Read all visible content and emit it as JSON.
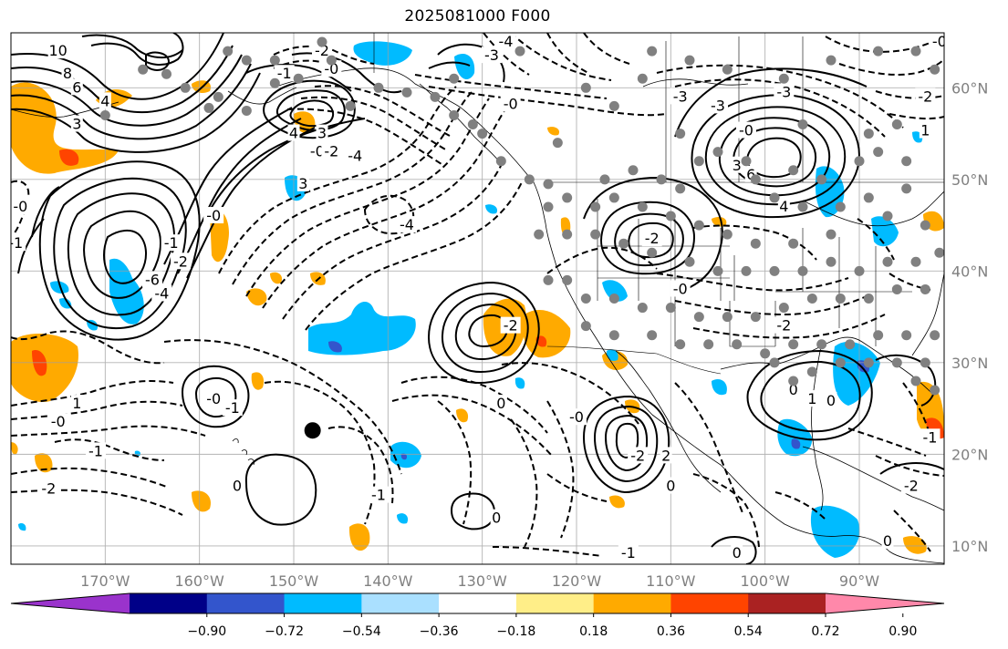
{
  "title": "2025081000 F000",
  "map": {
    "lon_min": -180,
    "lon_max": -81,
    "lat_min": 8,
    "lat_max": 66,
    "gridlines": true,
    "lon_ticks": [
      {
        "value": -170,
        "label": "170°W"
      },
      {
        "value": -160,
        "label": "160°W"
      },
      {
        "value": -150,
        "label": "150°W"
      },
      {
        "value": -140,
        "label": "140°W"
      },
      {
        "value": -130,
        "label": "130°W"
      },
      {
        "value": -120,
        "label": "120°W"
      },
      {
        "value": -110,
        "label": "110°W"
      },
      {
        "value": -100,
        "label": "100°W"
      },
      {
        "value": -90,
        "label": "90°W"
      }
    ],
    "lat_ticks": [
      {
        "value": 60,
        "label": "60°N"
      },
      {
        "value": 50,
        "label": "50°N"
      },
      {
        "value": 40,
        "label": "40°N"
      },
      {
        "value": 30,
        "label": "30°N"
      },
      {
        "value": 20,
        "label": "20°N"
      },
      {
        "value": 10,
        "label": "10°N"
      }
    ],
    "tick_label_color": "#808080",
    "contour_labels": [
      {
        "text": "10",
        "lon": -175,
        "lat": 64
      },
      {
        "text": "8",
        "lon": -174,
        "lat": 61.5
      },
      {
        "text": "6",
        "lon": -173,
        "lat": 60
      },
      {
        "text": "4",
        "lon": -170,
        "lat": 58.5
      },
      {
        "text": "3",
        "lon": -173,
        "lat": 56
      },
      {
        "text": "4",
        "lon": -150,
        "lat": 55
      },
      {
        "text": "3",
        "lon": -147,
        "lat": 55
      },
      {
        "text": "3",
        "lon": -149,
        "lat": 49.5
      },
      {
        "text": "-2",
        "lon": -147,
        "lat": 64
      },
      {
        "text": "-1",
        "lon": -151,
        "lat": 61.5
      },
      {
        "text": "-0",
        "lon": -146,
        "lat": 62
      },
      {
        "text": "-3",
        "lon": -129,
        "lat": 63.5
      },
      {
        "text": "-4",
        "lon": -127.5,
        "lat": 65
      },
      {
        "text": "-0",
        "lon": -127,
        "lat": 58.2
      },
      {
        "text": "-0",
        "lon": -147.5,
        "lat": 53
      },
      {
        "text": "-2",
        "lon": -146,
        "lat": 53
      },
      {
        "text": "-4",
        "lon": -143.5,
        "lat": 52.5
      },
      {
        "text": "-4",
        "lon": -138,
        "lat": 45
      },
      {
        "text": "-0",
        "lon": -179,
        "lat": 47
      },
      {
        "text": "-1",
        "lon": -179.5,
        "lat": 43
      },
      {
        "text": "-0",
        "lon": -158.5,
        "lat": 46
      },
      {
        "text": "-2",
        "lon": -162,
        "lat": 41
      },
      {
        "text": "-6",
        "lon": -165,
        "lat": 39
      },
      {
        "text": "-4",
        "lon": -164,
        "lat": 37.5
      },
      {
        "text": "-1",
        "lon": -163,
        "lat": 43
      },
      {
        "text": "-2",
        "lon": -127,
        "lat": 34
      },
      {
        "text": "0",
        "lon": -128,
        "lat": 25.5
      },
      {
        "text": "-0",
        "lon": -158.5,
        "lat": 26
      },
      {
        "text": "-1",
        "lon": -156.5,
        "lat": 25
      },
      {
        "text": "1",
        "lon": -173,
        "lat": 25.5
      },
      {
        "text": "-0",
        "lon": -175,
        "lat": 23.5
      },
      {
        "text": "-1",
        "lon": -171,
        "lat": 20.3
      },
      {
        "text": "-2",
        "lon": -176,
        "lat": 16.2
      },
      {
        "text": "0",
        "lon": -156,
        "lat": 16.5
      },
      {
        "text": "-1",
        "lon": -141,
        "lat": 15.5
      },
      {
        "text": "0",
        "lon": -128.5,
        "lat": 13
      },
      {
        "text": "-0",
        "lon": -120,
        "lat": 24
      },
      {
        "text": "-2",
        "lon": -113.5,
        "lat": 19.8
      },
      {
        "text": "2",
        "lon": -110.5,
        "lat": 19.8
      },
      {
        "text": "0",
        "lon": -110,
        "lat": 16.5
      },
      {
        "text": "-1",
        "lon": -114.5,
        "lat": 9.2
      },
      {
        "text": "0",
        "lon": -103,
        "lat": 9.2
      },
      {
        "text": "-0",
        "lon": -109,
        "lat": 38
      },
      {
        "text": "-2",
        "lon": -112,
        "lat": 43.5
      },
      {
        "text": "-2",
        "lon": -98,
        "lat": 34
      },
      {
        "text": "-3",
        "lon": -109,
        "lat": 59
      },
      {
        "text": "-3",
        "lon": -105,
        "lat": 58
      },
      {
        "text": "-3",
        "lon": -98,
        "lat": 59.5
      },
      {
        "text": "-0",
        "lon": -102,
        "lat": 55.3
      },
      {
        "text": "3",
        "lon": -103,
        "lat": 51.5
      },
      {
        "text": "6",
        "lon": -101.5,
        "lat": 50.5
      },
      {
        "text": "4",
        "lon": -98,
        "lat": 47
      },
      {
        "text": "-0",
        "lon": -81.5,
        "lat": 65
      },
      {
        "text": "-2",
        "lon": -83,
        "lat": 59
      },
      {
        "text": "1",
        "lon": -83,
        "lat": 55.3
      },
      {
        "text": "0",
        "lon": -97,
        "lat": 27
      },
      {
        "text": "1",
        "lon": -95,
        "lat": 26
      },
      {
        "text": "0",
        "lon": -93,
        "lat": 25.8
      },
      {
        "text": "-1",
        "lon": -82.5,
        "lat": 21.8
      },
      {
        "text": "-2",
        "lon": -84.5,
        "lat": 16.5
      },
      {
        "text": "0",
        "lon": -87,
        "lat": 10.5
      }
    ],
    "stations": [
      [
        -163.5,
        61.5
      ],
      [
        -161.5,
        60
      ],
      [
        -158,
        59
      ],
      [
        -155,
        57.5
      ],
      [
        -159,
        57.8
      ],
      [
        -152,
        60.5
      ],
      [
        -149.5,
        61
      ],
      [
        -147,
        65
      ],
      [
        -146,
        63
      ],
      [
        -152,
        63
      ],
      [
        -155,
        63
      ],
      [
        -157,
        64
      ],
      [
        -144,
        58
      ],
      [
        -141,
        60
      ],
      [
        -133,
        61
      ],
      [
        -126,
        64
      ],
      [
        -130,
        55
      ],
      [
        -122,
        54
      ],
      [
        -119,
        60
      ],
      [
        -116,
        58
      ],
      [
        -113,
        61
      ],
      [
        -112,
        64
      ],
      [
        -108,
        63
      ],
      [
        -104,
        62
      ],
      [
        -98,
        61
      ],
      [
        -93,
        63
      ],
      [
        -88,
        64
      ],
      [
        -84,
        64
      ],
      [
        -82,
        62
      ],
      [
        -109,
        55
      ],
      [
        -107,
        52
      ],
      [
        -105,
        53
      ],
      [
        -102,
        52
      ],
      [
        -101,
        50
      ],
      [
        -97,
        51
      ],
      [
        -94,
        50
      ],
      [
        -90,
        52
      ],
      [
        -88,
        53
      ],
      [
        -85,
        52
      ],
      [
        -96,
        56
      ],
      [
        -89,
        55
      ],
      [
        -86,
        56
      ],
      [
        -85,
        49
      ],
      [
        -99,
        48
      ],
      [
        -96,
        47
      ],
      [
        -92,
        47
      ],
      [
        -89,
        48
      ],
      [
        -83,
        45
      ],
      [
        -87,
        46
      ],
      [
        -93,
        44
      ],
      [
        -97,
        43
      ],
      [
        -101,
        43
      ],
      [
        -104,
        44
      ],
      [
        -107,
        45
      ],
      [
        -110,
        46
      ],
      [
        -113,
        47
      ],
      [
        -116,
        48
      ],
      [
        -118,
        47
      ],
      [
        -121,
        48
      ],
      [
        -123,
        47
      ],
      [
        -124,
        44
      ],
      [
        -121,
        44
      ],
      [
        -118,
        44
      ],
      [
        -115,
        43
      ],
      [
        -112,
        42
      ],
      [
        -108,
        41
      ],
      [
        -105,
        40
      ],
      [
        -102,
        40
      ],
      [
        -99,
        40
      ],
      [
        -96,
        40
      ],
      [
        -93,
        41
      ],
      [
        -90,
        40
      ],
      [
        -87,
        41
      ],
      [
        -84,
        41
      ],
      [
        -81.5,
        42
      ],
      [
        -83,
        38
      ],
      [
        -86,
        38
      ],
      [
        -89,
        37
      ],
      [
        -92,
        37
      ],
      [
        -95,
        37
      ],
      [
        -98,
        36
      ],
      [
        -101,
        35
      ],
      [
        -104,
        35
      ],
      [
        -107,
        35
      ],
      [
        -110,
        36
      ],
      [
        -113,
        36
      ],
      [
        -116,
        37
      ],
      [
        -119,
        37
      ],
      [
        -121,
        39
      ],
      [
        -123,
        39
      ],
      [
        -119,
        34
      ],
      [
        -116,
        33
      ],
      [
        -112,
        33
      ],
      [
        -109,
        32
      ],
      [
        -106,
        32
      ],
      [
        -103,
        32
      ],
      [
        -100,
        31
      ],
      [
        -97,
        32
      ],
      [
        -94,
        32
      ],
      [
        -91,
        32
      ],
      [
        -88,
        33
      ],
      [
        -85,
        33
      ],
      [
        -82,
        33
      ],
      [
        -97,
        28
      ],
      [
        -95,
        29
      ],
      [
        -92,
        30
      ],
      [
        -89,
        30
      ],
      [
        -86,
        30
      ],
      [
        -83,
        30
      ],
      [
        -82,
        27
      ],
      [
        -84,
        28
      ],
      [
        -99,
        30
      ],
      [
        -133,
        57
      ],
      [
        -135,
        59
      ],
      [
        -131,
        56
      ],
      [
        -128,
        52
      ],
      [
        -125,
        50
      ],
      [
        -123,
        49.5
      ],
      [
        -117,
        50
      ],
      [
        -114,
        51
      ],
      [
        -111,
        50
      ],
      [
        -109,
        49
      ],
      [
        -138,
        59.5
      ],
      [
        -166,
        62
      ],
      [
        -170,
        57
      ]
    ],
    "large_marker": {
      "lon": -148,
      "lat": 22.6
    }
  },
  "colorbar": {
    "colors": [
      "#9a33cc",
      "#000088",
      "#3355cc",
      "#00bbff",
      "#aae0ff",
      "#ffffff",
      "#ffee88",
      "#ffaa00",
      "#ff4400",
      "#aa2222",
      "#ff88aa"
    ],
    "labels": [
      "-0.90",
      "-0.72",
      "-0.54",
      "-0.36",
      "-0.18",
      "0.18",
      "0.36",
      "0.54",
      "0.72",
      "0.90"
    ]
  }
}
